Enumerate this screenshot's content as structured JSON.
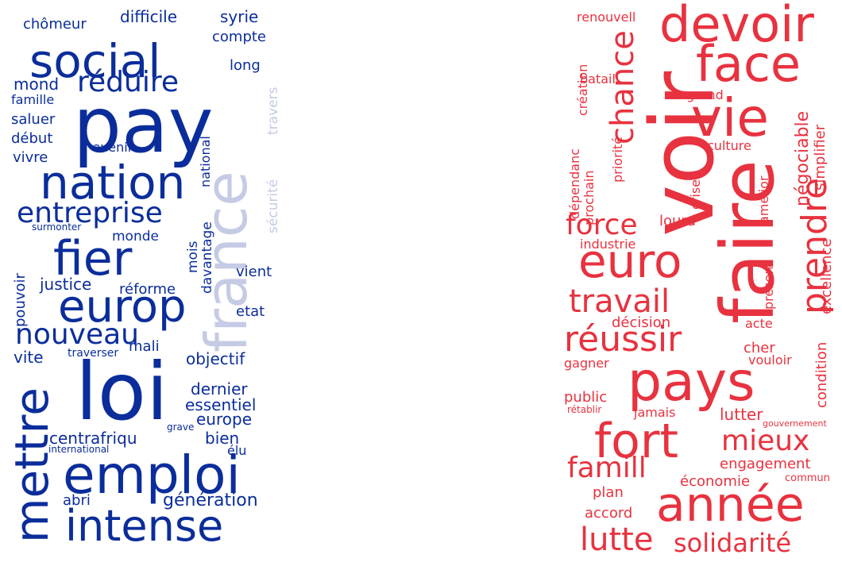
{
  "colors": {
    "left_primary": "#0b2d9b",
    "left_faded": "#c5cbe4",
    "right_primary": "#e8323f"
  },
  "left_cloud": {
    "words": [
      {
        "text": "pay",
        "color": "primary"
      },
      {
        "text": "social",
        "color": "primary"
      },
      {
        "text": "loi",
        "color": "primary"
      },
      {
        "text": "emploi",
        "color": "primary"
      },
      {
        "text": "nation",
        "color": "primary"
      },
      {
        "text": "fier",
        "color": "primary"
      },
      {
        "text": "europ",
        "color": "primary"
      },
      {
        "text": "intense",
        "color": "primary"
      },
      {
        "text": "mettre",
        "color": "primary"
      },
      {
        "text": "france",
        "color": "faded"
      },
      {
        "text": "entreprise",
        "color": "primary"
      },
      {
        "text": "réduire",
        "color": "primary"
      },
      {
        "text": "nouveau",
        "color": "primary"
      },
      {
        "text": "mond",
        "color": "primary"
      },
      {
        "text": "chômeur",
        "color": "primary"
      },
      {
        "text": "difficile",
        "color": "primary"
      },
      {
        "text": "syrie",
        "color": "primary"
      },
      {
        "text": "compte",
        "color": "primary"
      },
      {
        "text": "long",
        "color": "primary"
      },
      {
        "text": "famille",
        "color": "primary"
      },
      {
        "text": "saluer",
        "color": "primary"
      },
      {
        "text": "début",
        "color": "primary"
      },
      {
        "text": "vivre",
        "color": "primary"
      },
      {
        "text": "avenir",
        "color": "primary"
      },
      {
        "text": "national",
        "color": "primary"
      },
      {
        "text": "sécurité",
        "color": "faded"
      },
      {
        "text": "travers",
        "color": "faded"
      },
      {
        "text": "surmonter",
        "color": "primary"
      },
      {
        "text": "monde",
        "color": "primary"
      },
      {
        "text": "mois",
        "color": "primary"
      },
      {
        "text": "davantage",
        "color": "primary"
      },
      {
        "text": "vient",
        "color": "primary"
      },
      {
        "text": "justice",
        "color": "primary"
      },
      {
        "text": "réforme",
        "color": "primary"
      },
      {
        "text": "pouvoir",
        "color": "primary"
      },
      {
        "text": "etat",
        "color": "primary"
      },
      {
        "text": "vite",
        "color": "primary"
      },
      {
        "text": "traverser",
        "color": "primary"
      },
      {
        "text": "objectif",
        "color": "primary"
      },
      {
        "text": "mali",
        "color": "primary"
      },
      {
        "text": "dernier",
        "color": "primary"
      },
      {
        "text": "essentiel",
        "color": "primary"
      },
      {
        "text": "europe",
        "color": "primary"
      },
      {
        "text": "centrafriqu",
        "color": "primary"
      },
      {
        "text": "grave",
        "color": "primary"
      },
      {
        "text": "bien",
        "color": "primary"
      },
      {
        "text": "international",
        "color": "primary"
      },
      {
        "text": "élu",
        "color": "primary"
      },
      {
        "text": "abri",
        "color": "primary"
      },
      {
        "text": "génération",
        "color": "primary"
      }
    ]
  },
  "right_cloud": {
    "words": [
      {
        "text": "voir"
      },
      {
        "text": "faire"
      },
      {
        "text": "pays"
      },
      {
        "text": "année"
      },
      {
        "text": "fort"
      },
      {
        "text": "devoir"
      },
      {
        "text": "face"
      },
      {
        "text": "vie"
      },
      {
        "text": "euro"
      },
      {
        "text": "prendre"
      },
      {
        "text": "réussir"
      },
      {
        "text": "travail"
      },
      {
        "text": "chance"
      },
      {
        "text": "famill"
      },
      {
        "text": "lutte"
      },
      {
        "text": "solidarité"
      },
      {
        "text": "mieux"
      },
      {
        "text": "force"
      },
      {
        "text": "renouvell"
      },
      {
        "text": "création"
      },
      {
        "text": "bataill"
      },
      {
        "text": "grand"
      },
      {
        "text": "négociable"
      },
      {
        "text": "simplifier"
      },
      {
        "text": "culture"
      },
      {
        "text": "prochain"
      },
      {
        "text": "priorité"
      },
      {
        "text": "dépendanc"
      },
      {
        "text": "crise"
      },
      {
        "text": "lourd"
      },
      {
        "text": "amélior"
      },
      {
        "text": "industrie"
      },
      {
        "text": "excellence"
      },
      {
        "text": "présent"
      },
      {
        "text": "décision"
      },
      {
        "text": "acte"
      },
      {
        "text": "cher"
      },
      {
        "text": "condition"
      },
      {
        "text": "vouloir"
      },
      {
        "text": "gagner"
      },
      {
        "text": "public"
      },
      {
        "text": "rétablir"
      },
      {
        "text": "jamais"
      },
      {
        "text": "lutter"
      },
      {
        "text": "gouvernement"
      },
      {
        "text": "engagement"
      },
      {
        "text": "économie"
      },
      {
        "text": "commun"
      },
      {
        "text": "plan"
      },
      {
        "text": "accord"
      }
    ]
  }
}
